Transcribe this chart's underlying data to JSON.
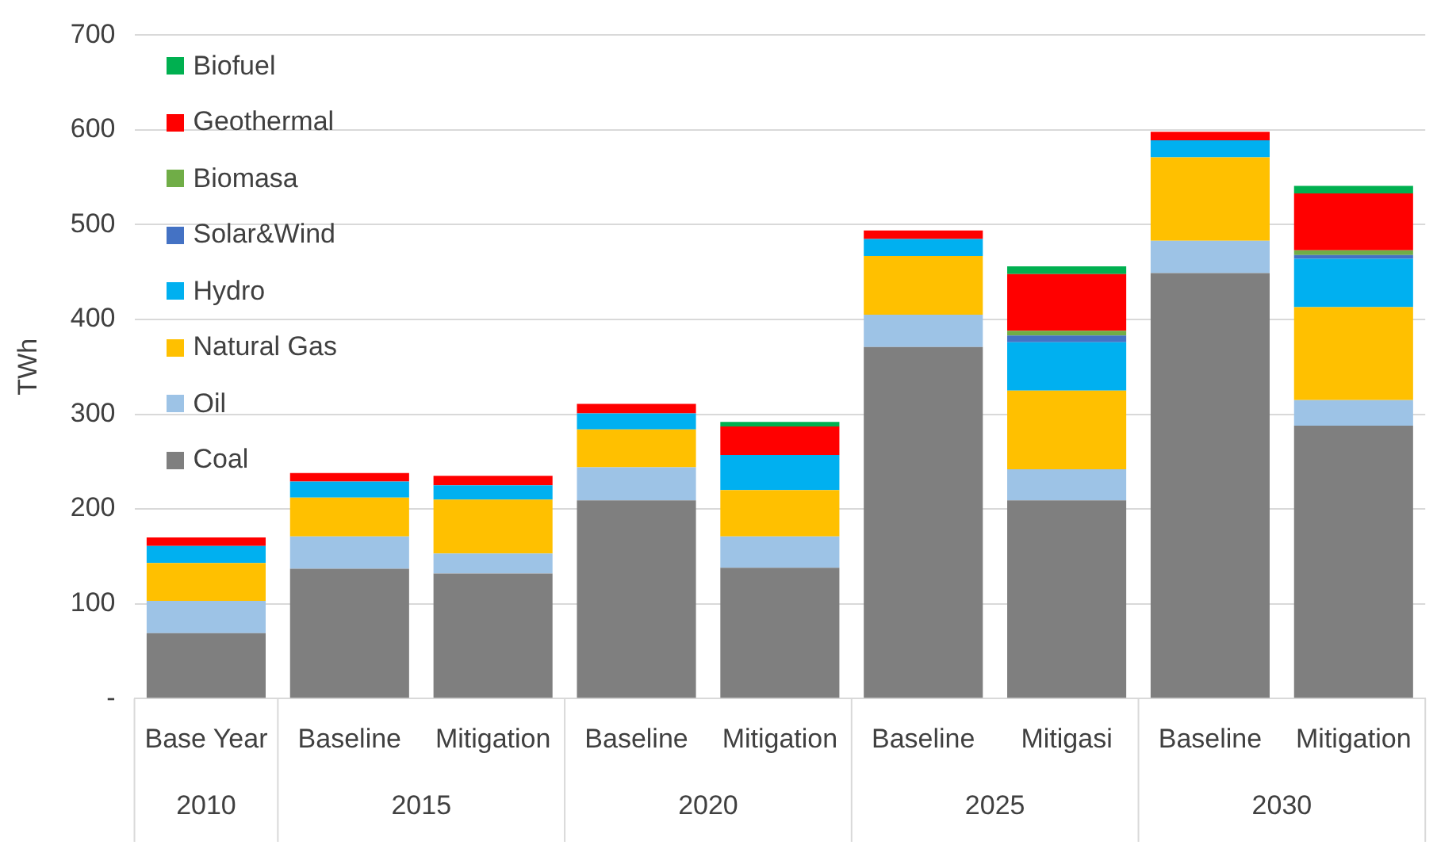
{
  "chart_data": {
    "type": "bar",
    "stacked": true,
    "ylabel": "TWh",
    "categories": [
      "Base Year",
      "Baseline",
      "Mitigation",
      "Baseline",
      "Mitigation",
      "Baseline",
      "Mitigasi",
      "Baseline",
      "Mitigation"
    ],
    "annotations": [
      "2010",
      "2015",
      "2020",
      "2025",
      "2030"
    ],
    "series": [
      {
        "name": "Coal",
        "color": "#7f7f7f",
        "values": [
          69,
          137,
          132,
          209,
          138,
          371,
          209,
          449,
          288
        ]
      },
      {
        "name": "Oil",
        "color": "#9dc3e6",
        "values": [
          34,
          34,
          21,
          35,
          33,
          34,
          33,
          34,
          27
        ]
      },
      {
        "name": "Natural Gas",
        "color": "#ffc000",
        "values": [
          40,
          41,
          57,
          40,
          49,
          62,
          83,
          88,
          98
        ]
      },
      {
        "name": "Hydro",
        "color": "#00b0f0",
        "values": [
          18,
          17,
          15,
          17,
          37,
          18,
          51,
          18,
          51
        ]
      },
      {
        "name": "Solar&Wind",
        "color": "#4472c4",
        "values": [
          0,
          0,
          0,
          0,
          0,
          0,
          7,
          0,
          4
        ]
      },
      {
        "name": "Biomasa",
        "color": "#70ad47",
        "values": [
          0,
          0,
          0,
          0,
          0,
          0,
          5,
          0,
          5
        ]
      },
      {
        "name": "Geothermal",
        "color": "#ff0000",
        "values": [
          9,
          9,
          10,
          10,
          30,
          9,
          60,
          9,
          60
        ]
      },
      {
        "name": "Biofuel",
        "color": "#00b050",
        "values": [
          0,
          0,
          0,
          0,
          5,
          0,
          8,
          0,
          8
        ]
      }
    ],
    "ylim": [
      0,
      700
    ],
    "yticks": [
      {
        "value": 0,
        "label": "-"
      },
      100,
      200,
      300,
      400,
      500,
      600,
      700
    ],
    "grid": "y",
    "legend": "top left"
  }
}
